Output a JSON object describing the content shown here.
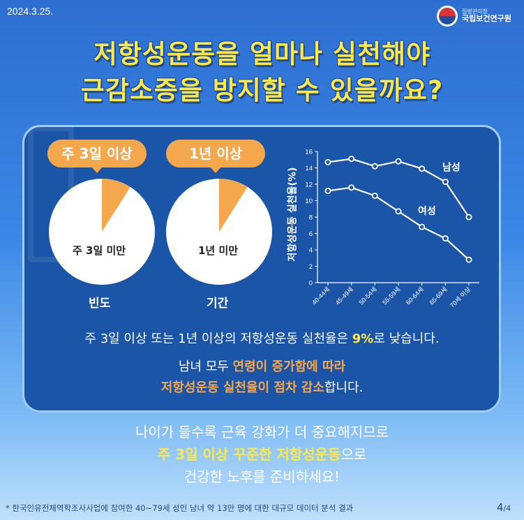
{
  "header": {
    "date": "2024.3.25.",
    "org_small": "질병관리청",
    "org_name": "국립보건연구원"
  },
  "title": {
    "line1": "저항성운동을 얼마나 실천해야",
    "line2": "근감소증을 방지할 수 있을까요?"
  },
  "pies": [
    {
      "badge": "주 3일 이상",
      "percent": "9%",
      "inner_label": "주 3일 미만",
      "caption": "빈도",
      "value": 9
    },
    {
      "badge": "1년 이상",
      "percent": "9%",
      "inner_label": "1년 미만",
      "caption": "기간",
      "value": 9
    }
  ],
  "chart_data": {
    "type": "line",
    "ylabel": "저항성운동 실천율(%)",
    "ylim": [
      0,
      16
    ],
    "yticks": [
      0,
      2,
      4,
      6,
      8,
      10,
      12,
      14,
      16
    ],
    "categories": [
      "40-44세",
      "45-49세",
      "50-54세",
      "55-59세",
      "60-64세",
      "65-69세",
      "70세 이상"
    ],
    "series": [
      {
        "name": "남성",
        "values": [
          14.7,
          15.1,
          14.2,
          14.8,
          13.9,
          12.3,
          8.0
        ]
      },
      {
        "name": "여성",
        "values": [
          11.2,
          11.6,
          10.6,
          8.7,
          6.8,
          5.4,
          2.8
        ]
      }
    ]
  },
  "body": {
    "line1_pre": "주 3일 이상 또는 1년 이상의 저항성운동 실천율은 ",
    "line1_hl": "9%",
    "line1_post": "로 낮습니다.",
    "line2_pre": "남녀 모두 ",
    "line2_hl": "연령이 증가함에 따라",
    "line3_hl": "저항성운동 실천율이 점차 감소",
    "line3_post": "합니다."
  },
  "bottom": {
    "line1": "나이가 들수록 근육 강화가 더 중요해지므로",
    "line2_hl": "주 3일 이상 꾸준한 저항성운동",
    "line2_post": "으로",
    "line3": "건강한 노후를 준비하세요!"
  },
  "footnote": "* 한국인유전체역학조사사업에 참여한 40~79세 성인 남녀 약 13만 명에 대한 대규모 데이터 분석 결과",
  "page": {
    "current": "4",
    "total": "/4"
  },
  "colors": {
    "accent": "#f4a74b",
    "title": "#fbe84a",
    "panel": "#1b55a8"
  }
}
